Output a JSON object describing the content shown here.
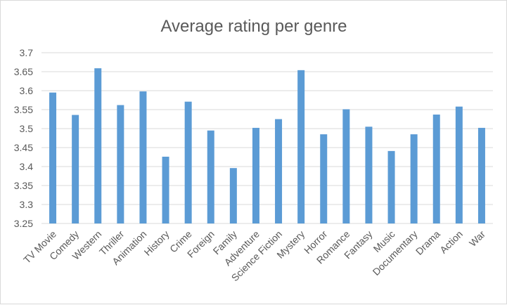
{
  "chart_data": {
    "type": "bar",
    "title": "Average rating per genre",
    "xlabel": "",
    "ylabel": "",
    "ylim": [
      3.25,
      3.7
    ],
    "yticks": [
      "3.25",
      "3.3",
      "3.35",
      "3.4",
      "3.45",
      "3.5",
      "3.55",
      "3.6",
      "3.65",
      "3.7"
    ],
    "grid": true,
    "bar_color": "#5b9bd5",
    "categories": [
      "TV Movie",
      "Comedy",
      "Western",
      "Thriller",
      "Animation",
      "History",
      "Crime",
      "Foreign",
      "Family",
      "Adventure",
      "Science Fiction",
      "Mystery",
      "Horror",
      "Romance",
      "Fantasy",
      "Music",
      "Documentary",
      "Drama",
      "Action",
      "War"
    ],
    "values": [
      3.595,
      3.536,
      3.659,
      3.562,
      3.598,
      3.426,
      3.571,
      3.495,
      3.396,
      3.502,
      3.525,
      3.654,
      3.485,
      3.551,
      3.505,
      3.441,
      3.485,
      3.537,
      3.558,
      3.502
    ]
  }
}
